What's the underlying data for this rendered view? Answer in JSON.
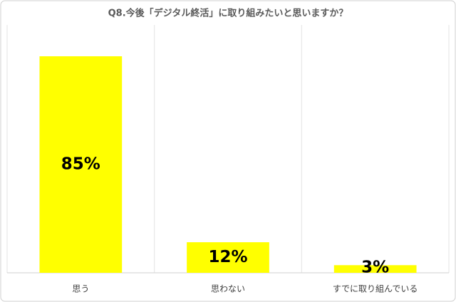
{
  "chart_data": {
    "type": "bar",
    "title": "Q8.今後「デジタル終活」に取り組みたいと思いますか？",
    "categories": [
      "思う",
      "思わない",
      "すでに取り組んでいる"
    ],
    "values": [
      85,
      12,
      3
    ],
    "value_labels": [
      "85%",
      "12%",
      "3%"
    ],
    "color": "#ffff00",
    "grid": true
  }
}
